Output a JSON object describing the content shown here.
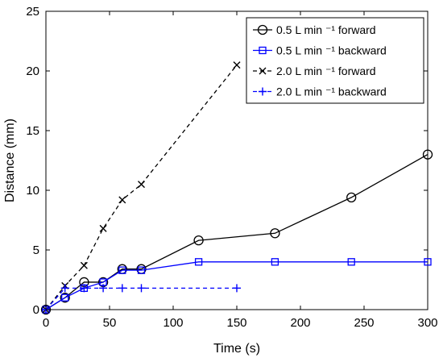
{
  "chart_data": {
    "type": "line",
    "xlabel": "Time (s)",
    "ylabel": "Distance (mm)",
    "xlim": [
      0,
      300
    ],
    "ylim": [
      0,
      25
    ],
    "x_ticks": [
      0,
      50,
      100,
      150,
      200,
      250,
      300
    ],
    "y_ticks": [
      0,
      5,
      10,
      15,
      20,
      25
    ],
    "grid": false,
    "legend_position": "top-right",
    "series": [
      {
        "name": "0.5 L min ⁻¹ forward",
        "color": "#000000",
        "line_style": "solid",
        "marker": "circle",
        "x": [
          0,
          15,
          30,
          45,
          60,
          75,
          120,
          180,
          240,
          300
        ],
        "y": [
          0,
          1.0,
          2.3,
          2.3,
          3.4,
          3.4,
          5.8,
          6.4,
          9.4,
          13.0
        ]
      },
      {
        "name": "0.5 L min ⁻¹ backward",
        "color": "#0000ff",
        "line_style": "solid",
        "marker": "square",
        "x": [
          0,
          15,
          30,
          45,
          60,
          75,
          120,
          180,
          240,
          300
        ],
        "y": [
          0,
          1.0,
          1.8,
          2.3,
          3.3,
          3.3,
          4.0,
          4.0,
          4.0,
          4.0
        ]
      },
      {
        "name": "2.0 L min ⁻¹ forward",
        "color": "#000000",
        "line_style": "dashed",
        "marker": "x",
        "x": [
          0,
          15,
          30,
          45,
          60,
          75,
          150
        ],
        "y": [
          0,
          2.0,
          3.7,
          6.8,
          9.2,
          10.5,
          20.5
        ]
      },
      {
        "name": "2.0 L min ⁻¹ backward",
        "color": "#0000ff",
        "line_style": "dashed",
        "marker": "plus",
        "x": [
          0,
          15,
          30,
          45,
          60,
          75,
          150
        ],
        "y": [
          0,
          1.8,
          1.8,
          1.8,
          1.8,
          1.8,
          1.8
        ]
      }
    ]
  }
}
